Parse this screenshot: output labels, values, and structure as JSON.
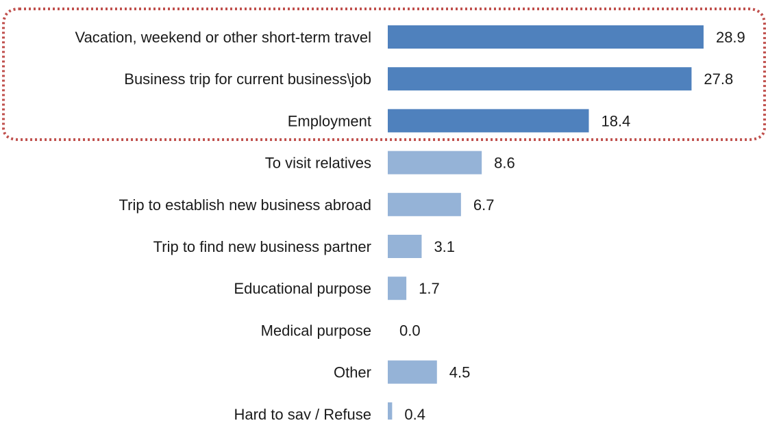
{
  "chart_data": {
    "type": "bar",
    "orientation": "horizontal",
    "categories": [
      "Vacation, weekend or other short-term travel",
      "Business trip for current business\\job",
      "Employment",
      "To visit relatives",
      "Trip to establish new business abroad",
      "Trip to find new business partner",
      "Educational purpose",
      "Medical purpose",
      "Other",
      "Hard to say  / Refuse"
    ],
    "values": [
      28.9,
      27.8,
      18.4,
      8.6,
      6.7,
      3.1,
      1.7,
      0.0,
      4.5,
      0.4
    ],
    "value_labels": [
      "28.9",
      "27.8",
      "18.4",
      "8.6",
      "6.7",
      "3.1",
      "1.7",
      "0.0",
      "4.5",
      "0.4"
    ],
    "highlighted": [
      true,
      true,
      true,
      false,
      false,
      false,
      false,
      false,
      false,
      false
    ],
    "xlim": [
      0,
      30
    ],
    "title": "",
    "xlabel": "",
    "ylabel": "",
    "grid": false,
    "legend": "none",
    "colors": {
      "highlight_bar": "#4F81BD",
      "normal_bar": "#95B3D7",
      "highlight_box": "#C0504D",
      "text": "#1a1a1a"
    }
  }
}
